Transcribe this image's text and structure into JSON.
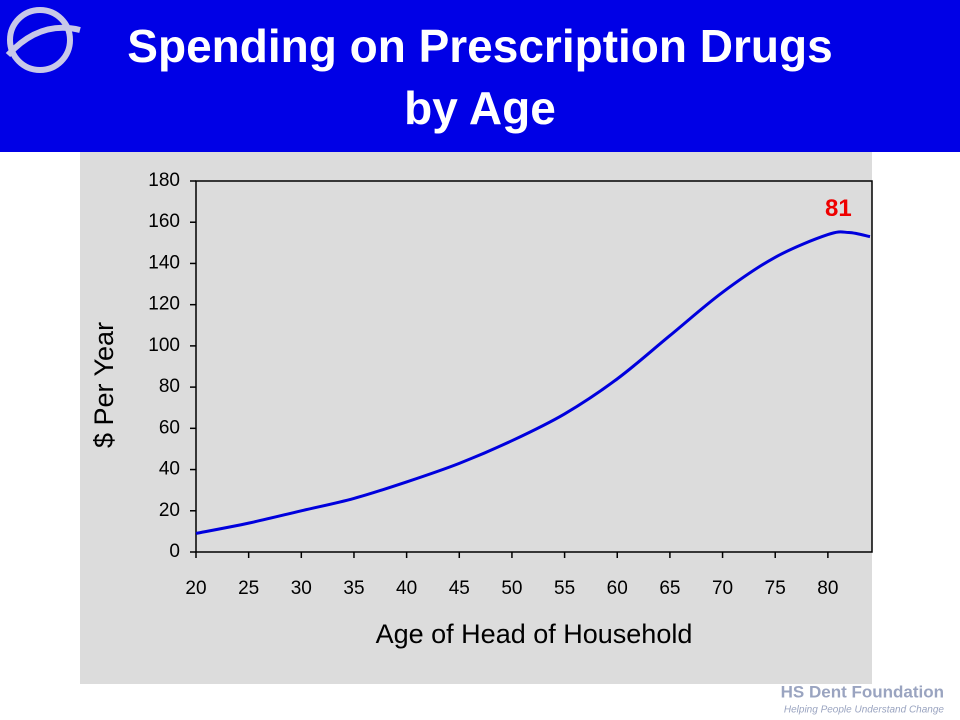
{
  "chart_data": {
    "type": "line",
    "title": [
      "Spending on Prescription Drugs",
      "by Age"
    ],
    "x_label": "Age of Head of Household",
    "y_label": "$ Per Year",
    "x": [
      20,
      25,
      30,
      35,
      40,
      45,
      50,
      55,
      60,
      65,
      70,
      75,
      80,
      82,
      84
    ],
    "series": [
      {
        "name": "Spending",
        "color": "#0000dd",
        "values": [
          9,
          14,
          20,
          26,
          34,
          43,
          54,
          67,
          84,
          105,
          126,
          143,
          154,
          155,
          153
        ]
      }
    ],
    "xlim": [
      20,
      84
    ],
    "xticks": [
      20,
      25,
      30,
      35,
      40,
      45,
      50,
      55,
      60,
      65,
      70,
      75,
      80
    ],
    "ylim": [
      0,
      180
    ],
    "yticks": [
      0,
      20,
      40,
      60,
      80,
      100,
      120,
      140,
      160,
      180
    ],
    "annotations": [
      {
        "text": "81",
        "x": 81,
        "y": 166,
        "color": "#ee0000"
      }
    ]
  },
  "footer": {
    "name": "HS Dent Foundation",
    "tagline": "Helping People Understand Change"
  }
}
